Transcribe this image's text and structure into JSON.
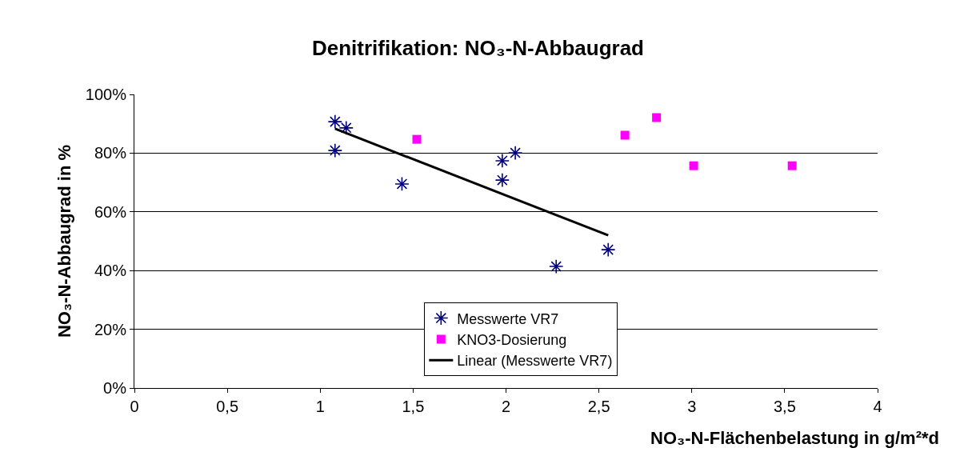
{
  "chart_data": {
    "type": "scatter",
    "title": "Denitrifikation: NO₃-N-Abbaugrad",
    "xlabel": "NO₃-N-Flächenbelastung in g/m²*d",
    "ylabel": "NO₃-N-Abbaugrad in %",
    "series": [
      {
        "name": "Messwerte VR7",
        "color": "#000080",
        "marker": "cross",
        "x": [
          1.08,
          1.14,
          1.08,
          1.44,
          1.98,
          1.98,
          2.05,
          2.27,
          2.55
        ],
        "values": [
          90.7,
          88.6,
          80.9,
          69.5,
          77.4,
          70.8,
          80.1,
          41.4,
          47.1
        ]
      },
      {
        "name": "KNO3-Dosierung",
        "color": "#ff00ff",
        "marker": "square",
        "x": [
          1.52,
          2.64,
          2.81,
          3.01,
          3.54
        ],
        "values": [
          84.7,
          86.1,
          92.1,
          75.7,
          75.7
        ]
      },
      {
        "name": "Linear (Messwerte VR7)",
        "type": "line",
        "color": "#000000",
        "marker": "none",
        "line_style": "solid",
        "x": [
          1.08,
          2.55
        ],
        "values": [
          88.3,
          52.0
        ]
      }
    ],
    "xlim": [
      0,
      4
    ],
    "xticks": [
      0,
      {
        "value": 0.5,
        "label": "0,5"
      },
      1,
      {
        "value": 1.5,
        "label": "1,5"
      },
      2,
      {
        "value": 2.5,
        "label": "2,5"
      },
      3,
      {
        "value": 3.5,
        "label": "3,5"
      },
      4
    ],
    "ylim": [
      0,
      100
    ],
    "yticks": [
      {
        "value": 0,
        "label": "0%"
      },
      {
        "value": 20,
        "label": "20%"
      },
      {
        "value": 40,
        "label": "40%"
      },
      {
        "value": 60,
        "label": "60%"
      },
      {
        "value": 80,
        "label": "80%"
      },
      {
        "value": 100,
        "label": "100%"
      }
    ],
    "grid": "y",
    "legend": "bottom"
  }
}
